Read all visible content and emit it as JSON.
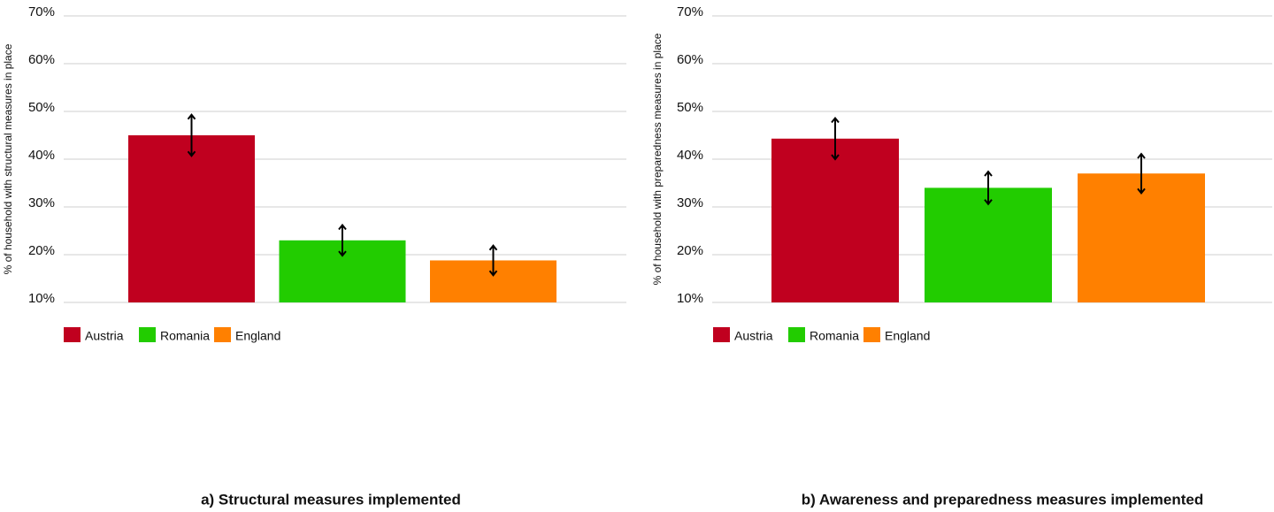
{
  "chart_data": [
    {
      "type": "bar",
      "title": "a) Structural measures implemented",
      "y_label": "% of household with structural measures in place",
      "ylim": [
        10,
        70
      ],
      "yticks": [
        {
          "value": 10,
          "label": "10%"
        },
        {
          "value": 20,
          "label": "20%"
        },
        {
          "value": 30,
          "label": "30%"
        },
        {
          "value": 40,
          "label": "40%"
        },
        {
          "value": 50,
          "label": "50%"
        },
        {
          "value": 60,
          "label": "60%"
        },
        {
          "value": 70,
          "label": "70%"
        }
      ],
      "grid": true,
      "series": [
        {
          "name": "Austria",
          "color": "#c0001f",
          "values": [
            45
          ],
          "errors": [
            4.3
          ]
        },
        {
          "name": "Romania",
          "color": "#22cc00",
          "values": [
            23
          ],
          "errors": [
            3.2
          ]
        },
        {
          "name": "England",
          "color": "#ff8000",
          "values": [
            18.8
          ],
          "errors": [
            3.1
          ]
        }
      ]
    },
    {
      "type": "bar",
      "title": "b) Awareness and preparedness measures implemented",
      "y_label": "% of household with preparedness  measures in place",
      "ylim": [
        10,
        70
      ],
      "yticks": [
        {
          "value": 10,
          "label": "10%"
        },
        {
          "value": 20,
          "label": "20%"
        },
        {
          "value": 30,
          "label": "30%"
        },
        {
          "value": 40,
          "label": "40%"
        },
        {
          "value": 50,
          "label": "50%"
        },
        {
          "value": 60,
          "label": "60%"
        },
        {
          "value": 70,
          "label": "70%"
        }
      ],
      "grid": true,
      "series": [
        {
          "name": "Austria",
          "color": "#c0001f",
          "values": [
            44.3
          ],
          "errors": [
            4.3
          ]
        },
        {
          "name": "Romania",
          "color": "#22cc00",
          "values": [
            34
          ],
          "errors": [
            3.4
          ]
        },
        {
          "name": "England",
          "color": "#ff8000",
          "values": [
            37
          ],
          "errors": [
            4.1
          ]
        }
      ]
    }
  ]
}
